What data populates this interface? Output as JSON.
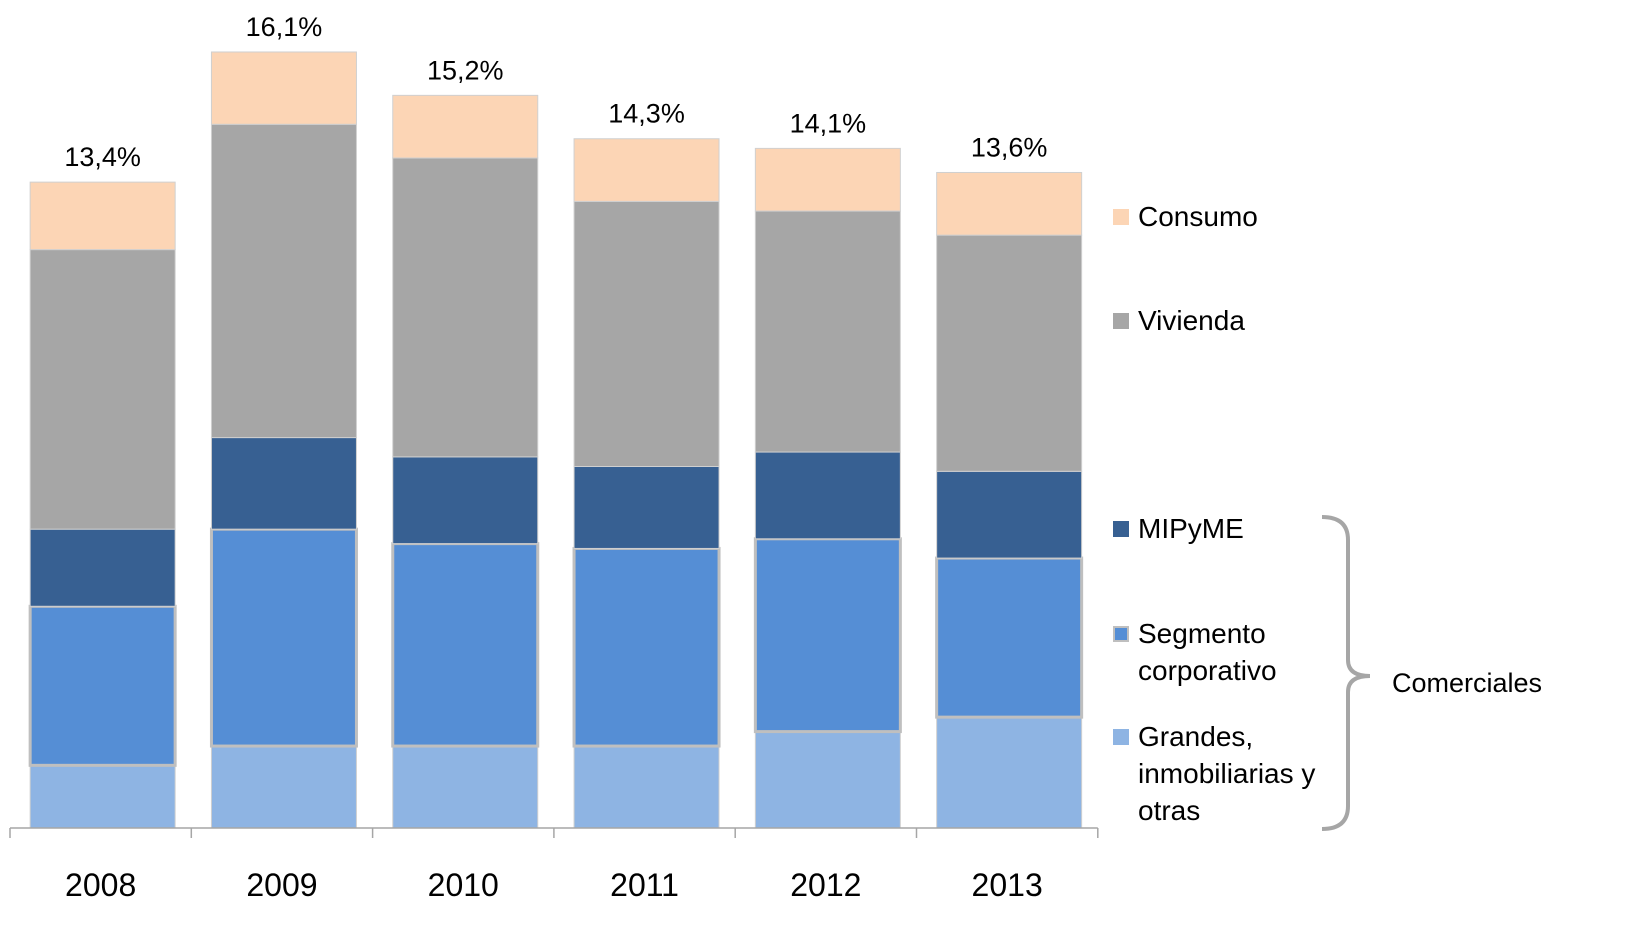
{
  "chart_data": {
    "type": "stacked_bar",
    "categories": [
      "2008",
      "2009",
      "2010",
      "2011",
      "2012",
      "2013"
    ],
    "series": [
      {
        "name": "Grandes, inmobiliarias y otras",
        "color": "#8eb4e3",
        "values": [
          1.3,
          1.7,
          1.7,
          1.7,
          2.0,
          2.3
        ]
      },
      {
        "name": "Segmento corporativo",
        "color": "#558ed5",
        "values": [
          3.3,
          4.5,
          4.2,
          4.1,
          4.0,
          3.3
        ]
      },
      {
        "name": "MIPyME",
        "color": "#376092",
        "values": [
          1.6,
          1.9,
          1.8,
          1.7,
          1.8,
          1.8
        ]
      },
      {
        "name": "Vivienda",
        "color": "#a6a6a6",
        "values": [
          5.8,
          6.5,
          6.2,
          5.5,
          5.0,
          4.9
        ]
      },
      {
        "name": "Consumo",
        "color": "#fcd5b5",
        "values": [
          1.4,
          1.5,
          1.3,
          1.3,
          1.3,
          1.3
        ]
      }
    ],
    "totals": [
      13.4,
      16.1,
      15.2,
      14.3,
      14.1,
      13.6
    ],
    "total_labels": [
      "13,4%",
      "16,1%",
      "15,2%",
      "14,3%",
      "14,1%",
      "13,6%"
    ],
    "annotation": "Comerciales"
  }
}
